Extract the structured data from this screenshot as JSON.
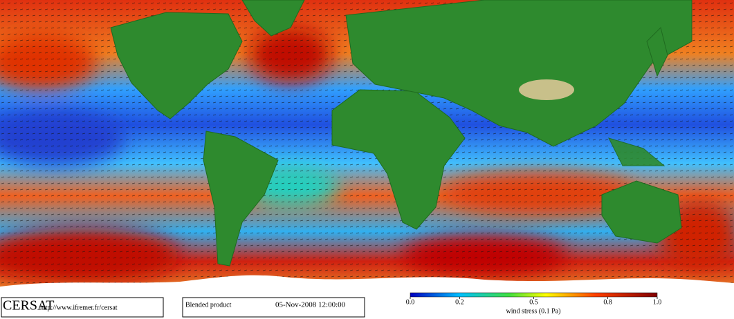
{
  "footer": {
    "logo": "CERSAT",
    "url": "http://www.ifremer.fr/cersat",
    "product": "Blended product",
    "date": "05-Nov-2008 12:00:00"
  },
  "colorbar": {
    "label": "wind stress (0.1 Pa)",
    "lim": [
      0,
      1
    ],
    "ticks": [
      {
        "value": 0,
        "label": "0.0"
      },
      {
        "value": 0.2,
        "label": "0.2"
      },
      {
        "value": 0.5,
        "label": "0.5"
      },
      {
        "value": 0.8,
        "label": "0.8"
      },
      {
        "value": 1,
        "label": "1.0"
      }
    ]
  }
}
